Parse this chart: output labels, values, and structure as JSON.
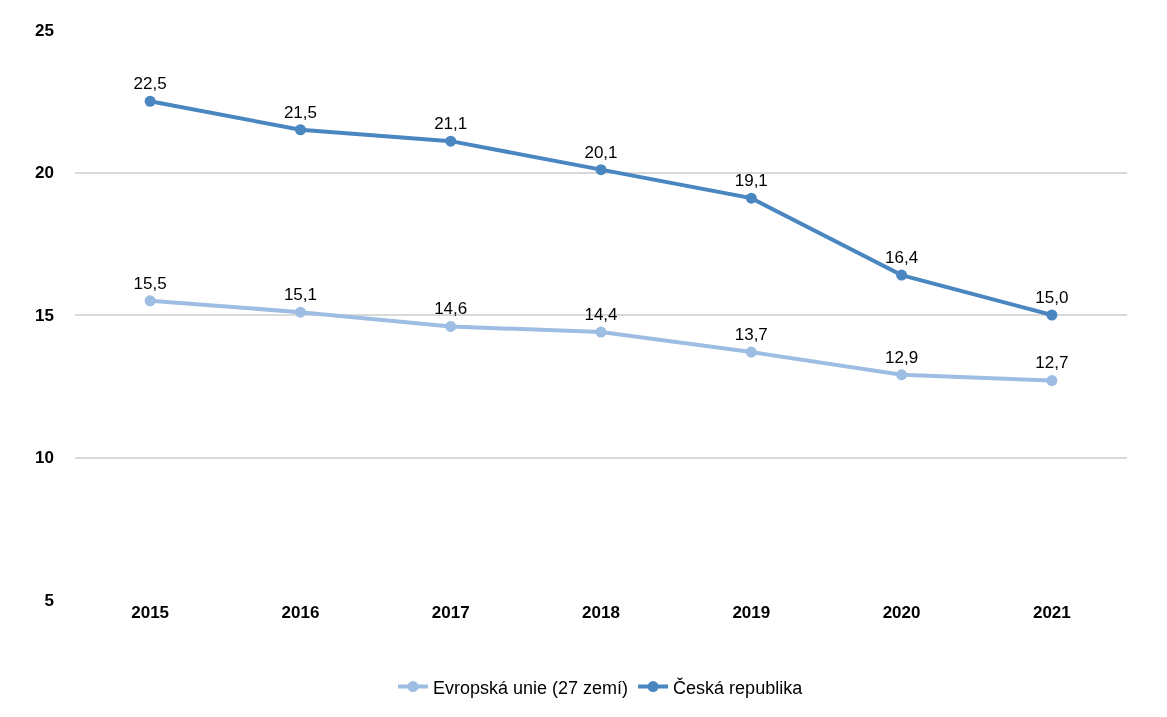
{
  "chart_data": {
    "type": "line",
    "categories": [
      "2015",
      "2016",
      "2017",
      "2018",
      "2019",
      "2020",
      "2021"
    ],
    "series": [
      {
        "name": "Evropská unie (27 zemí)",
        "color": "#9dbde3",
        "values": [
          15.5,
          15.1,
          14.6,
          14.4,
          13.7,
          12.9,
          12.7
        ],
        "value_labels": [
          "15,5",
          "15,1",
          "14,6",
          "14,4",
          "13,7",
          "12,9",
          "12,7"
        ]
      },
      {
        "name": "Česká republika",
        "color": "#4a86c0",
        "values": [
          22.5,
          21.5,
          21.1,
          20.1,
          19.1,
          16.4,
          15.0
        ],
        "value_labels": [
          "22,5",
          "21,5",
          "21,1",
          "20,1",
          "19,1",
          "16,4",
          "15,0"
        ]
      }
    ],
    "ylim": [
      5,
      25
    ],
    "yticks": [
      5,
      10,
      15,
      20,
      25
    ],
    "grid": "y",
    "legend": "bottom",
    "marker": "circle",
    "line_style": "solid"
  }
}
